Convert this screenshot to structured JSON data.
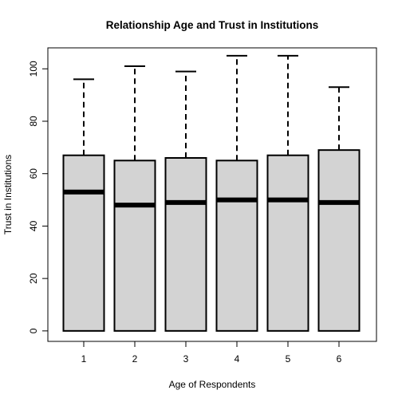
{
  "chart_data": {
    "type": "boxplot",
    "title": "Relationship Age and Trust in Institutions",
    "xlabel": "Age of Respondents",
    "ylabel": "Trust in Institutions",
    "categories": [
      "1",
      "2",
      "3",
      "4",
      "5",
      "6"
    ],
    "y_ticks": [
      "0",
      "20",
      "40",
      "60",
      "80",
      "100"
    ],
    "ylim": [
      -4,
      108
    ],
    "grid": false,
    "legend": "none",
    "box_fill": "#d3d3d3",
    "boxes": [
      {
        "category": "1",
        "min": 0,
        "q1": 0,
        "median": 53,
        "q3": 67,
        "max": 96
      },
      {
        "category": "2",
        "min": 0,
        "q1": 0,
        "median": 48,
        "q3": 65,
        "max": 101
      },
      {
        "category": "3",
        "min": 0,
        "q1": 0,
        "median": 49,
        "q3": 66,
        "max": 99
      },
      {
        "category": "4",
        "min": 0,
        "q1": 0,
        "median": 50,
        "q3": 65,
        "max": 105
      },
      {
        "category": "5",
        "min": 0,
        "q1": 0,
        "median": 50,
        "q3": 67,
        "max": 105
      },
      {
        "category": "6",
        "min": 0,
        "q1": 0,
        "median": 49,
        "q3": 69,
        "max": 93
      }
    ]
  }
}
